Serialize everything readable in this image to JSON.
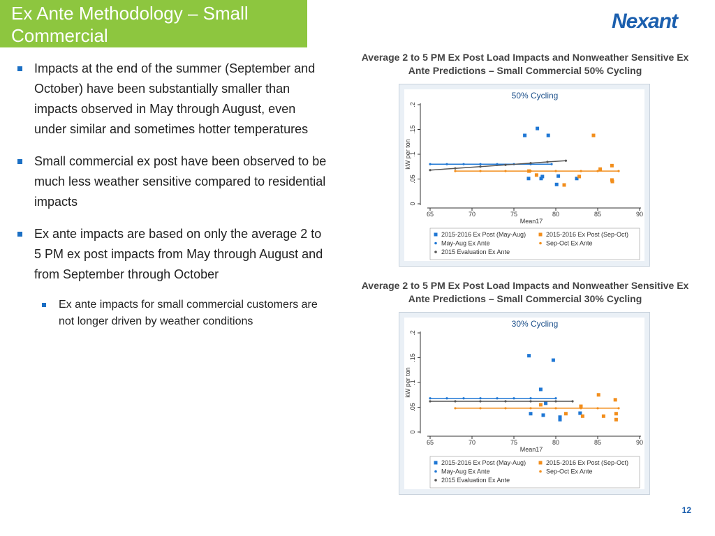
{
  "header": {
    "title": "Ex Ante Methodology – Small Commercial",
    "logo": "Nexant"
  },
  "bullets": [
    {
      "level": 1,
      "text": "Impacts at the end of the summer (September and October) have been substantially smaller than impacts observed in May through August, even under similar and sometimes hotter temperatures"
    },
    {
      "level": 1,
      "text": "Small commercial ex post have been observed to be much less weather sensitive compared to residential impacts"
    },
    {
      "level": 1,
      "text": "Ex ante impacts are based on only the average 2 to 5 PM ex post impacts from May through August and from September through October"
    },
    {
      "level": 2,
      "text": "Ex ante impacts for small commercial customers are not longer driven by weather conditions"
    }
  ],
  "page_number": "12",
  "chart_data": [
    {
      "type": "scatter",
      "caption": "Average 2 to 5 PM Ex Post Load Impacts and Nonweather Sensitive Ex Ante Predictions – Small Commercial 50% Cycling",
      "title": "50% Cycling",
      "x_label": "Mean17",
      "y_label": "kW per ton",
      "xlim": [
        65,
        90
      ],
      "xticks": [
        65,
        70,
        75,
        80,
        85,
        90
      ],
      "ylim": [
        0,
        0.2
      ],
      "yticks": [
        0,
        {
          "value": 0.05,
          "label": ".05"
        },
        {
          "value": 0.1,
          "label": ".1"
        },
        {
          "value": 0.15,
          "label": ".15"
        },
        {
          "value": 0.2,
          "label": ".2"
        }
      ],
      "series": [
        {
          "name": "2015-2016 Ex Post (May-Aug)",
          "color": "#1f77d4",
          "style": "square",
          "x": [
            76.3,
            77.8,
            79.1,
            76.75,
            78.25,
            78.4,
            80.1,
            80.3,
            82.5
          ],
          "values": [
            0.138,
            0.152,
            0.138,
            0.051,
            0.051,
            0.055,
            0.039,
            0.056,
            0.051
          ]
        },
        {
          "name": "2015-2016 Ex Post (Sep-Oct)",
          "color": "#f28e1c",
          "style": "square",
          "x": [
            84.5,
            85.3,
            86.7,
            86.7,
            86.75,
            82.8,
            81,
            77.7,
            76.8
          ],
          "values": [
            0.138,
            0.07,
            0.077,
            0.048,
            0.045,
            0.055,
            0.038,
            0.058,
            0.066
          ]
        },
        {
          "name": "May-Aug Ex Ante",
          "color": "#1f77d4",
          "style": "line",
          "x": [
            65,
            67,
            69,
            71,
            73,
            75,
            77,
            79.5
          ],
          "values": [
            0.08,
            0.08,
            0.08,
            0.08,
            0.08,
            0.08,
            0.08,
            0.08
          ]
        },
        {
          "name": "Sep-Oct Ex Ante",
          "color": "#f28e1c",
          "style": "line",
          "x": [
            68,
            71,
            74,
            77,
            80,
            83,
            85,
            87.5
          ],
          "values": [
            0.066,
            0.066,
            0.066,
            0.066,
            0.066,
            0.066,
            0.066,
            0.066
          ]
        },
        {
          "name": "2015 Evaluation Ex Ante",
          "color": "#555555",
          "style": "line",
          "x": [
            65,
            68,
            71,
            74,
            77,
            79,
            81.2
          ],
          "values": [
            0.068,
            0.0715,
            0.075,
            0.0785,
            0.082,
            0.0845,
            0.087
          ]
        }
      ]
    },
    {
      "type": "scatter",
      "caption": "Average 2 to 5 PM Ex Post Load Impacts and Nonweather Sensitive Ex Ante Predictions – Small Commercial 30% Cycling",
      "title": "30% Cycling",
      "x_label": "Mean17",
      "y_label": "kW per ton",
      "xlim": [
        65,
        90
      ],
      "xticks": [
        65,
        70,
        75,
        80,
        85,
        90
      ],
      "ylim": [
        0,
        0.2
      ],
      "yticks": [
        0,
        {
          "value": 0.05,
          "label": ".05"
        },
        {
          "value": 0.1,
          "label": ".1"
        },
        {
          "value": 0.15,
          "label": ".15"
        },
        {
          "value": 0.2,
          "label": ".2"
        }
      ],
      "series": [
        {
          "name": "2015-2016 Ex Post (May-Aug)",
          "color": "#1f77d4",
          "style": "square",
          "x": [
            76.8,
            79.7,
            78.2,
            77,
            78.5,
            78.8,
            80.5,
            80.5,
            82.9
          ],
          "values": [
            0.154,
            0.145,
            0.086,
            0.037,
            0.034,
            0.058,
            0.03,
            0.025,
            0.038
          ]
        },
        {
          "name": "2015-2016 Ex Post (Sep-Oct)",
          "color": "#f28e1c",
          "style": "square",
          "x": [
            85.1,
            87.1,
            83,
            81.2,
            83.2,
            85.7,
            87.2,
            87.2,
            78.2
          ],
          "values": [
            0.075,
            0.065,
            0.052,
            0.037,
            0.032,
            0.032,
            0.037,
            0.025,
            0.055
          ]
        },
        {
          "name": "May-Aug Ex Ante",
          "color": "#1f77d4",
          "style": "line",
          "x": [
            65,
            67,
            69,
            71,
            73,
            75,
            77,
            80
          ],
          "values": [
            0.068,
            0.068,
            0.068,
            0.068,
            0.068,
            0.068,
            0.068,
            0.068
          ]
        },
        {
          "name": "Sep-Oct Ex Ante",
          "color": "#f28e1c",
          "style": "line",
          "x": [
            68,
            71,
            74,
            77,
            80,
            83,
            85,
            87.5
          ],
          "values": [
            0.048,
            0.048,
            0.048,
            0.048,
            0.048,
            0.048,
            0.048,
            0.048
          ]
        },
        {
          "name": "2015 Evaluation Ex Ante",
          "color": "#555555",
          "style": "line",
          "x": [
            65,
            68,
            71,
            74,
            77,
            80,
            82
          ],
          "values": [
            0.062,
            0.062,
            0.062,
            0.062,
            0.062,
            0.062,
            0.062
          ]
        }
      ]
    }
  ]
}
